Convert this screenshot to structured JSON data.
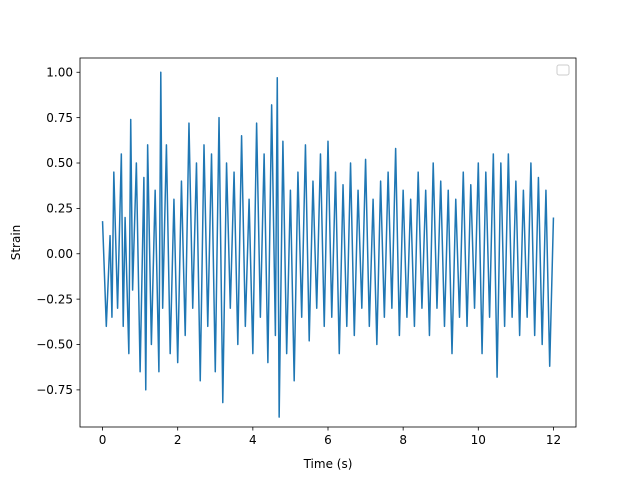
{
  "chart_data": {
    "type": "line",
    "title": "",
    "xlabel": "Time (s)",
    "ylabel": "Strain",
    "xlim": [
      -0.6,
      12.6
    ],
    "ylim": [
      -0.9545,
      1.0786
    ],
    "xticks": [
      0,
      2,
      4,
      6,
      8,
      10,
      12
    ],
    "xtick_labels": [
      "0",
      "2",
      "4",
      "6",
      "8",
      "10",
      "12"
    ],
    "yticks": [
      -0.75,
      -0.5,
      -0.25,
      0.0,
      0.25,
      0.5,
      0.75,
      1.0
    ],
    "ytick_labels": [
      "−0.75",
      "−0.50",
      "−0.25",
      "0.00",
      "0.25",
      "0.50",
      "0.75",
      "1.00"
    ],
    "grid": false,
    "legend": {
      "placement": "upper right",
      "entries": []
    },
    "series": [
      {
        "color": "#1f77b4",
        "x": [
          0.0,
          0.1,
          0.2,
          0.25,
          0.3,
          0.4,
          0.5,
          0.55,
          0.6,
          0.7,
          0.75,
          0.8,
          0.9,
          1.0,
          1.1,
          1.15,
          1.2,
          1.3,
          1.4,
          1.5,
          1.55,
          1.6,
          1.7,
          1.8,
          1.9,
          2.0,
          2.1,
          2.2,
          2.3,
          2.4,
          2.5,
          2.6,
          2.7,
          2.8,
          2.9,
          3.0,
          3.1,
          3.2,
          3.3,
          3.4,
          3.5,
          3.6,
          3.7,
          3.8,
          3.9,
          4.0,
          4.1,
          4.2,
          4.3,
          4.4,
          4.5,
          4.6,
          4.65,
          4.7,
          4.8,
          4.9,
          5.0,
          5.1,
          5.2,
          5.3,
          5.4,
          5.5,
          5.6,
          5.7,
          5.8,
          5.9,
          6.0,
          6.1,
          6.2,
          6.3,
          6.4,
          6.5,
          6.6,
          6.7,
          6.8,
          6.9,
          7.0,
          7.1,
          7.2,
          7.3,
          7.4,
          7.5,
          7.6,
          7.7,
          7.8,
          7.9,
          8.0,
          8.1,
          8.2,
          8.3,
          8.4,
          8.5,
          8.6,
          8.7,
          8.8,
          8.9,
          9.0,
          9.1,
          9.2,
          9.3,
          9.4,
          9.5,
          9.6,
          9.7,
          9.8,
          9.9,
          10.0,
          10.1,
          10.2,
          10.3,
          10.4,
          10.5,
          10.6,
          10.7,
          10.8,
          10.9,
          11.0,
          11.1,
          11.2,
          11.3,
          11.4,
          11.5,
          11.6,
          11.7,
          11.8,
          11.9,
          12.0
        ],
        "y": [
          0.18,
          -0.4,
          0.1,
          -0.35,
          0.45,
          -0.3,
          0.55,
          -0.4,
          0.2,
          -0.55,
          0.74,
          -0.2,
          0.5,
          -0.65,
          0.42,
          -0.75,
          0.6,
          -0.5,
          0.35,
          -0.65,
          1.0,
          -0.3,
          0.6,
          -0.55,
          0.3,
          -0.6,
          0.4,
          -0.45,
          0.72,
          -0.3,
          0.5,
          -0.7,
          0.6,
          -0.4,
          0.55,
          -0.65,
          0.75,
          -0.82,
          0.5,
          -0.3,
          0.45,
          -0.5,
          0.65,
          -0.4,
          0.3,
          -0.55,
          0.72,
          -0.35,
          0.55,
          -0.6,
          0.82,
          -0.45,
          0.97,
          -0.9,
          0.62,
          -0.55,
          0.35,
          -0.7,
          0.45,
          -0.35,
          0.6,
          -0.48,
          0.4,
          -0.3,
          0.55,
          -0.4,
          0.62,
          -0.35,
          0.45,
          -0.55,
          0.38,
          -0.4,
          0.5,
          -0.45,
          0.35,
          -0.3,
          0.52,
          -0.4,
          0.3,
          -0.5,
          0.4,
          -0.35,
          0.45,
          -0.3,
          0.58,
          -0.45,
          0.35,
          -0.35,
          0.3,
          -0.4,
          0.45,
          -0.3,
          0.35,
          -0.45,
          0.5,
          -0.3,
          0.4,
          -0.4,
          0.35,
          -0.55,
          0.3,
          -0.35,
          0.45,
          -0.4,
          0.38,
          -0.3,
          0.5,
          -0.55,
          0.45,
          -0.35,
          0.55,
          -0.68,
          0.5,
          -0.4,
          0.55,
          -0.35,
          0.4,
          -0.45,
          0.35,
          -0.35,
          0.5,
          -0.45,
          0.42,
          -0.5,
          0.35,
          -0.62,
          0.2
        ]
      }
    ]
  }
}
